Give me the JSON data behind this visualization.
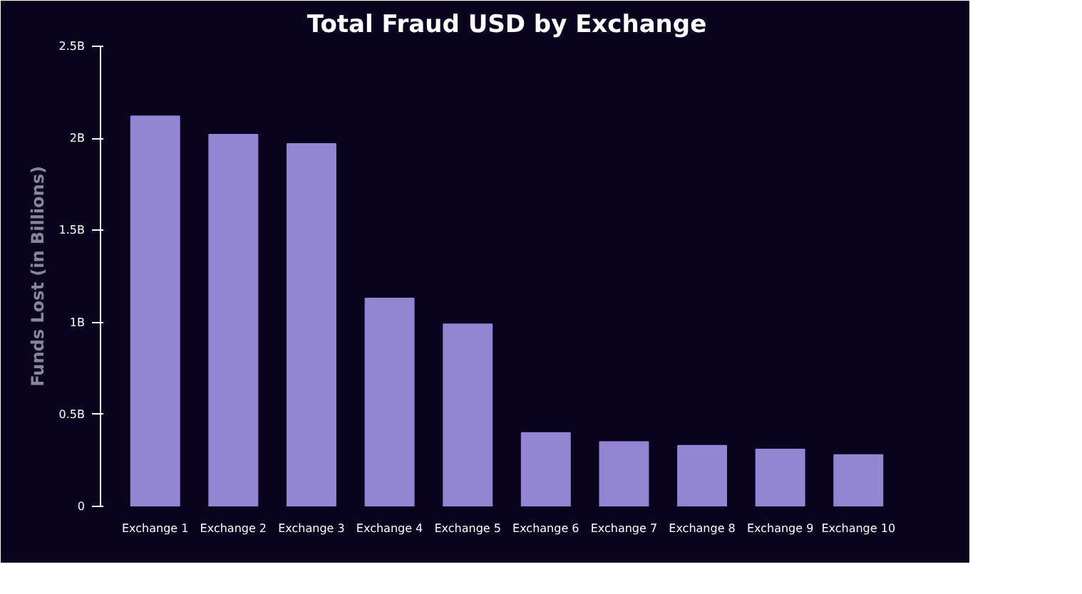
{
  "chart_data": {
    "type": "bar",
    "title": "Total Fraud USD by Exchange",
    "ylabel": "Funds Lost (in Billions)",
    "categories": [
      "Exchange 1",
      "Exchange 2",
      "Exchange 3",
      "Exchange 4",
      "Exchange 5",
      "Exchange 6",
      "Exchange 7",
      "Exchange 8",
      "Exchange 9",
      "Exchange 10"
    ],
    "values": [
      2.12,
      2.02,
      1.97,
      1.13,
      0.99,
      0.4,
      0.35,
      0.33,
      0.31,
      0.28
    ],
    "color": "#9285d2",
    "ylim": [
      0,
      2.5
    ],
    "yticks": [
      {
        "value": 0,
        "label": "0"
      },
      {
        "value": 0.5,
        "label": "0.5B"
      },
      {
        "value": 1,
        "label": "1B"
      },
      {
        "value": 1.5,
        "label": "1.5B"
      },
      {
        "value": 2,
        "label": "2B"
      },
      {
        "value": 2.5,
        "label": "2.5B"
      }
    ],
    "grid": false
  }
}
